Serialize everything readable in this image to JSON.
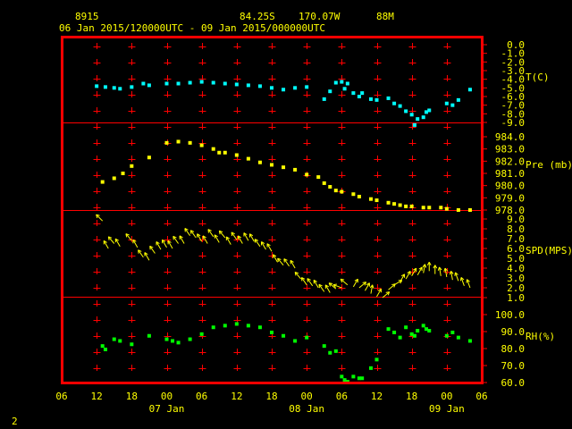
{
  "header": {
    "station": "8915",
    "lat": "84.25S",
    "lon": "170.07W",
    "elev": "88M",
    "time_range": "06 Jan 2015/120000UTC - 09 Jan 2015/000000UTC"
  },
  "page_number": "2",
  "colors": {
    "frame": "#ff0000",
    "text": "#ffff00",
    "temperature": "#00ffff",
    "pressure": "#ffff00",
    "wind": "#ffff00",
    "rh": "#00ff00"
  },
  "x_axis": {
    "hour_labels": [
      "06",
      "12",
      "18",
      "00",
      "06",
      "12",
      "18",
      "00",
      "06",
      "12",
      "18",
      "00",
      "06"
    ],
    "date_labels": [
      "07 Jan",
      "08 Jan",
      "09 Jan"
    ],
    "range_hours": [
      0,
      72
    ],
    "note": "x values are hours after 06 Jan 2015 06 UTC"
  },
  "chart_data": [
    {
      "type": "scatter",
      "name": "T(C)",
      "ylim": [
        -9.0,
        0.0
      ],
      "yticks": [
        "0.0",
        "-1.0",
        "-2.0",
        "-3.0",
        "-4.0",
        "-5.0",
        "-6.0",
        "-7.0",
        "-8.0",
        "-9.0"
      ],
      "x": [
        6,
        7.5,
        9,
        10,
        12,
        14,
        15,
        18,
        20,
        22,
        24,
        26,
        28,
        30,
        32,
        34,
        36,
        38,
        40,
        42,
        45,
        46,
        47,
        48,
        48.5,
        49,
        50,
        51,
        51.5,
        53,
        54,
        56,
        57,
        58,
        59,
        60,
        60.5,
        61,
        62,
        62.5,
        63,
        66,
        67,
        68,
        70
      ],
      "y": [
        -4.8,
        -4.9,
        -5.0,
        -5.1,
        -4.9,
        -4.5,
        -4.7,
        -4.5,
        -4.5,
        -4.4,
        -4.3,
        -4.4,
        -4.5,
        -4.6,
        -4.7,
        -4.8,
        -5.0,
        -5.2,
        -5.0,
        -4.9,
        -6.3,
        -5.4,
        -4.4,
        -4.3,
        -5.1,
        -4.5,
        -5.6,
        -6.0,
        -5.6,
        -6.3,
        -6.4,
        -6.2,
        -6.8,
        -7.1,
        -7.7,
        -8.1,
        -9.3,
        -8.6,
        -8.4,
        -7.8,
        -7.6,
        -6.8,
        -7.0,
        -6.4,
        -5.2
      ]
    },
    {
      "type": "scatter",
      "name": "Pre (mb)",
      "ylim": [
        978.0,
        984.0
      ],
      "yticks": [
        "984.0",
        "983.0",
        "982.0",
        "981.0",
        "980.0",
        "979.0",
        "978.0"
      ],
      "x": [
        7,
        9,
        10.5,
        12,
        15,
        18,
        20,
        22,
        24,
        26,
        27,
        28,
        30,
        32,
        34,
        36,
        38,
        40,
        42,
        44,
        45,
        46,
        47,
        48,
        50,
        51,
        53,
        54,
        56,
        57,
        58,
        59,
        60,
        62,
        63,
        65,
        66,
        68,
        70
      ],
      "y": [
        980.3,
        980.6,
        981.0,
        981.6,
        982.3,
        983.5,
        983.6,
        983.5,
        983.3,
        983.0,
        982.7,
        982.7,
        982.5,
        982.2,
        981.9,
        981.7,
        981.5,
        981.3,
        980.9,
        980.7,
        980.2,
        979.9,
        979.6,
        979.5,
        979.3,
        979.1,
        978.9,
        978.8,
        978.6,
        978.5,
        978.4,
        978.3,
        978.3,
        978.2,
        978.2,
        978.2,
        978.1,
        978.0,
        978.0
      ]
    },
    {
      "type": "scatter",
      "name": "SPD(MPS)",
      "ylim": [
        1.0,
        9.0
      ],
      "yticks": [
        "9.0",
        "8.0",
        "7.0",
        "6.0",
        "5.0",
        "4.0",
        "3.0",
        "2.0",
        "1.0"
      ],
      "x": [
        7,
        8,
        9,
        10,
        12,
        13,
        14,
        15,
        16,
        17,
        18,
        19,
        20,
        21,
        22,
        23,
        24,
        25,
        26,
        27,
        28,
        29,
        30,
        31,
        32,
        33,
        34,
        35,
        36,
        37,
        38,
        39,
        40,
        41,
        42,
        43,
        44,
        45,
        46,
        47,
        48,
        49,
        50,
        51,
        52,
        53,
        54,
        55,
        56,
        57,
        58,
        59,
        60,
        61,
        62,
        63,
        64,
        65,
        66,
        67,
        68,
        69,
        70
      ],
      "y": [
        8.8,
        6.0,
        6.5,
        6.2,
        6.8,
        6.1,
        5.1,
        4.8,
        5.5,
        5.9,
        6.1,
        6.0,
        6.5,
        6.5,
        7.3,
        7.1,
        6.7,
        6.5,
        7.2,
        6.6,
        7.1,
        6.4,
        6.9,
        6.5,
        6.8,
        6.7,
        6.2,
        5.9,
        5.7,
        4.6,
        4.3,
        4.2,
        4.0,
        2.9,
        2.3,
        2.2,
        2.0,
        1.6,
        1.5,
        1.9,
        2.0,
        2.3,
        2.1,
        2.0,
        1.7,
        1.4,
        1.1,
        1.0,
        1.8,
        2.3,
        2.6,
        2.9,
        3.2,
        3.3,
        3.5,
        3.7,
        3.4,
        3.2,
        3.1,
        2.8,
        2.7,
        2.2,
        2.0
      ],
      "dir": [
        135,
        120,
        130,
        120,
        130,
        120,
        125,
        120,
        125,
        120,
        120,
        120,
        125,
        120,
        125,
        125,
        120,
        120,
        125,
        120,
        130,
        120,
        125,
        120,
        120,
        120,
        125,
        120,
        120,
        120,
        130,
        125,
        120,
        130,
        125,
        125,
        120,
        125,
        120,
        140,
        160,
        140,
        60,
        40,
        60,
        80,
        60,
        40,
        40,
        30,
        60,
        60,
        60,
        60,
        80,
        90,
        90,
        100,
        100,
        100,
        110,
        110,
        110
      ]
    },
    {
      "type": "scatter",
      "name": "RH(%)",
      "ylim": [
        60.0,
        100.0
      ],
      "yticks": [
        "100.0",
        "90.0",
        "80.0",
        "70.0",
        "60.0"
      ],
      "x": [
        7,
        7.5,
        9,
        10,
        12,
        15,
        18,
        19,
        20,
        22,
        24,
        26,
        28,
        30,
        32,
        34,
        36,
        38,
        40,
        42,
        45,
        46,
        47,
        48,
        48.5,
        49,
        50,
        51,
        51.5,
        53,
        54,
        56,
        57,
        58,
        59,
        60,
        60.5,
        61,
        62,
        62.5,
        63,
        66,
        67,
        68,
        70
      ],
      "y": [
        81.5,
        79.5,
        85.5,
        84.5,
        82.5,
        87.5,
        85.5,
        84.5,
        83.5,
        85.5,
        88.5,
        92.5,
        93.5,
        94.5,
        93.5,
        92.5,
        89.5,
        87.5,
        84.5,
        86.5,
        81.5,
        77.5,
        78.5,
        63.5,
        61.5,
        60.5,
        63.5,
        62.5,
        62.5,
        68.5,
        73.5,
        91.5,
        89.5,
        86.5,
        92.5,
        88.5,
        87.5,
        90.5,
        93.5,
        91.5,
        90.5,
        87.5,
        89.5,
        86.5,
        84.5
      ]
    }
  ]
}
